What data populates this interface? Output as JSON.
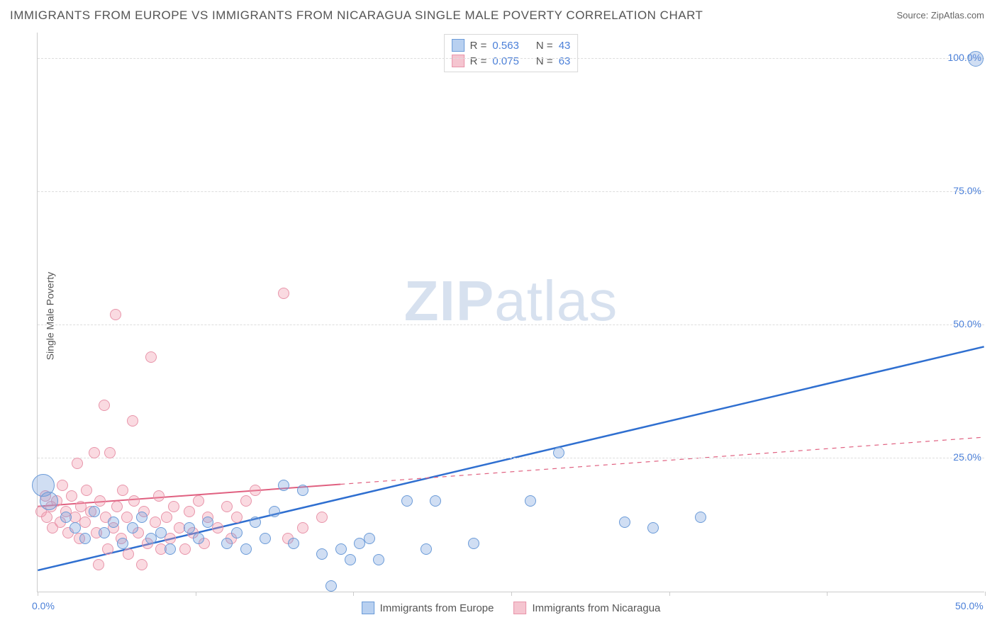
{
  "title": "IMMIGRANTS FROM EUROPE VS IMMIGRANTS FROM NICARAGUA SINGLE MALE POVERTY CORRELATION CHART",
  "source": "Source: ZipAtlas.com",
  "ylabel": "Single Male Poverty",
  "watermark_bold": "ZIP",
  "watermark_light": "atlas",
  "chart": {
    "type": "scatter",
    "xlim": [
      0,
      50
    ],
    "ylim": [
      0,
      105
    ],
    "yticks": [
      25,
      50,
      75,
      100
    ],
    "ytick_labels": [
      "25.0%",
      "50.0%",
      "75.0%",
      "100.0%"
    ],
    "xticks": [
      0,
      8.33,
      16.67,
      25,
      33.33,
      41.67,
      50
    ],
    "xtick_labels": {
      "0": "0.0%",
      "50": "50.0%"
    },
    "background_color": "#ffffff",
    "grid_color": "#dddddd",
    "axis_color": "#cccccc",
    "tick_label_color": "#4a7fd8",
    "label_fontsize": 14,
    "title_fontsize": 17,
    "title_color": "#555555",
    "series": [
      {
        "name": "Immigrants from Europe",
        "color_fill": "rgba(120,160,220,0.35)",
        "color_stroke": "#6b9bd8",
        "swatch_fill": "#b8d0f0",
        "swatch_border": "#6b9bd8",
        "R": "0.563",
        "N": "43",
        "marker_radius": 8,
        "trend": {
          "x1": 0,
          "y1": 4,
          "x2": 50,
          "y2": 46,
          "color": "#2f6fd0",
          "width": 2.5,
          "solid_until_x": 50
        },
        "points": [
          {
            "x": 0.3,
            "y": 20,
            "r": 16
          },
          {
            "x": 0.6,
            "y": 17,
            "r": 13
          },
          {
            "x": 1.5,
            "y": 14
          },
          {
            "x": 2,
            "y": 12
          },
          {
            "x": 2.5,
            "y": 10
          },
          {
            "x": 3,
            "y": 15
          },
          {
            "x": 3.5,
            "y": 11
          },
          {
            "x": 4,
            "y": 13
          },
          {
            "x": 4.5,
            "y": 9
          },
          {
            "x": 5,
            "y": 12
          },
          {
            "x": 5.5,
            "y": 14
          },
          {
            "x": 6,
            "y": 10
          },
          {
            "x": 6.5,
            "y": 11
          },
          {
            "x": 7,
            "y": 8
          },
          {
            "x": 8,
            "y": 12
          },
          {
            "x": 8.5,
            "y": 10
          },
          {
            "x": 9,
            "y": 13
          },
          {
            "x": 10,
            "y": 9
          },
          {
            "x": 10.5,
            "y": 11
          },
          {
            "x": 11,
            "y": 8
          },
          {
            "x": 11.5,
            "y": 13
          },
          {
            "x": 12,
            "y": 10
          },
          {
            "x": 12.5,
            "y": 15
          },
          {
            "x": 13,
            "y": 20
          },
          {
            "x": 13.5,
            "y": 9
          },
          {
            "x": 14,
            "y": 19
          },
          {
            "x": 15,
            "y": 7
          },
          {
            "x": 15.5,
            "y": 1
          },
          {
            "x": 16,
            "y": 8
          },
          {
            "x": 16.5,
            "y": 6
          },
          {
            "x": 17,
            "y": 9
          },
          {
            "x": 17.5,
            "y": 10
          },
          {
            "x": 18,
            "y": 6
          },
          {
            "x": 19.5,
            "y": 17
          },
          {
            "x": 20.5,
            "y": 8
          },
          {
            "x": 21,
            "y": 17
          },
          {
            "x": 23,
            "y": 9
          },
          {
            "x": 26,
            "y": 17
          },
          {
            "x": 27.5,
            "y": 26
          },
          {
            "x": 31,
            "y": 13
          },
          {
            "x": 32.5,
            "y": 12
          },
          {
            "x": 35,
            "y": 14
          },
          {
            "x": 49.5,
            "y": 100,
            "r": 11
          }
        ]
      },
      {
        "name": "Immigrants from Nicaragua",
        "color_fill": "rgba(240,150,170,0.35)",
        "color_stroke": "#e895aa",
        "swatch_fill": "#f5c5d0",
        "swatch_border": "#e895aa",
        "R": "0.075",
        "N": "63",
        "marker_radius": 8,
        "trend": {
          "x1": 0,
          "y1": 16,
          "x2": 50,
          "y2": 29,
          "color": "#e06080",
          "width": 2,
          "solid_until_x": 16
        },
        "points": [
          {
            "x": 0.2,
            "y": 15
          },
          {
            "x": 0.4,
            "y": 18
          },
          {
            "x": 0.5,
            "y": 14
          },
          {
            "x": 0.7,
            "y": 16
          },
          {
            "x": 0.8,
            "y": 12
          },
          {
            "x": 1,
            "y": 17
          },
          {
            "x": 1.2,
            "y": 13
          },
          {
            "x": 1.3,
            "y": 20
          },
          {
            "x": 1.5,
            "y": 15
          },
          {
            "x": 1.6,
            "y": 11
          },
          {
            "x": 1.8,
            "y": 18
          },
          {
            "x": 2,
            "y": 14
          },
          {
            "x": 2.1,
            "y": 24
          },
          {
            "x": 2.2,
            "y": 10
          },
          {
            "x": 2.3,
            "y": 16
          },
          {
            "x": 2.5,
            "y": 13
          },
          {
            "x": 2.6,
            "y": 19
          },
          {
            "x": 2.8,
            "y": 15
          },
          {
            "x": 3,
            "y": 26
          },
          {
            "x": 3.1,
            "y": 11
          },
          {
            "x": 3.2,
            "y": 5
          },
          {
            "x": 3.3,
            "y": 17
          },
          {
            "x": 3.5,
            "y": 35
          },
          {
            "x": 3.6,
            "y": 14
          },
          {
            "x": 3.7,
            "y": 8
          },
          {
            "x": 3.8,
            "y": 26
          },
          {
            "x": 4,
            "y": 12
          },
          {
            "x": 4.1,
            "y": 52
          },
          {
            "x": 4.2,
            "y": 16
          },
          {
            "x": 4.4,
            "y": 10
          },
          {
            "x": 4.5,
            "y": 19
          },
          {
            "x": 4.7,
            "y": 14
          },
          {
            "x": 4.8,
            "y": 7
          },
          {
            "x": 5,
            "y": 32
          },
          {
            "x": 5.1,
            "y": 17
          },
          {
            "x": 5.3,
            "y": 11
          },
          {
            "x": 5.5,
            "y": 5
          },
          {
            "x": 5.6,
            "y": 15
          },
          {
            "x": 5.8,
            "y": 9
          },
          {
            "x": 6,
            "y": 44
          },
          {
            "x": 6.2,
            "y": 13
          },
          {
            "x": 6.4,
            "y": 18
          },
          {
            "x": 6.5,
            "y": 8
          },
          {
            "x": 6.8,
            "y": 14
          },
          {
            "x": 7,
            "y": 10
          },
          {
            "x": 7.2,
            "y": 16
          },
          {
            "x": 7.5,
            "y": 12
          },
          {
            "x": 7.8,
            "y": 8
          },
          {
            "x": 8,
            "y": 15
          },
          {
            "x": 8.2,
            "y": 11
          },
          {
            "x": 8.5,
            "y": 17
          },
          {
            "x": 8.8,
            "y": 9
          },
          {
            "x": 9,
            "y": 14
          },
          {
            "x": 9.5,
            "y": 12
          },
          {
            "x": 10,
            "y": 16
          },
          {
            "x": 10.2,
            "y": 10
          },
          {
            "x": 10.5,
            "y": 14
          },
          {
            "x": 11,
            "y": 17
          },
          {
            "x": 11.5,
            "y": 19
          },
          {
            "x": 13,
            "y": 56
          },
          {
            "x": 13.2,
            "y": 10
          },
          {
            "x": 14,
            "y": 12
          },
          {
            "x": 15,
            "y": 14
          }
        ]
      }
    ],
    "legend_top": {
      "r_label": "R =",
      "n_label": "N ="
    },
    "legend_bottom_labels": [
      "Immigrants from Europe",
      "Immigrants from Nicaragua"
    ]
  }
}
